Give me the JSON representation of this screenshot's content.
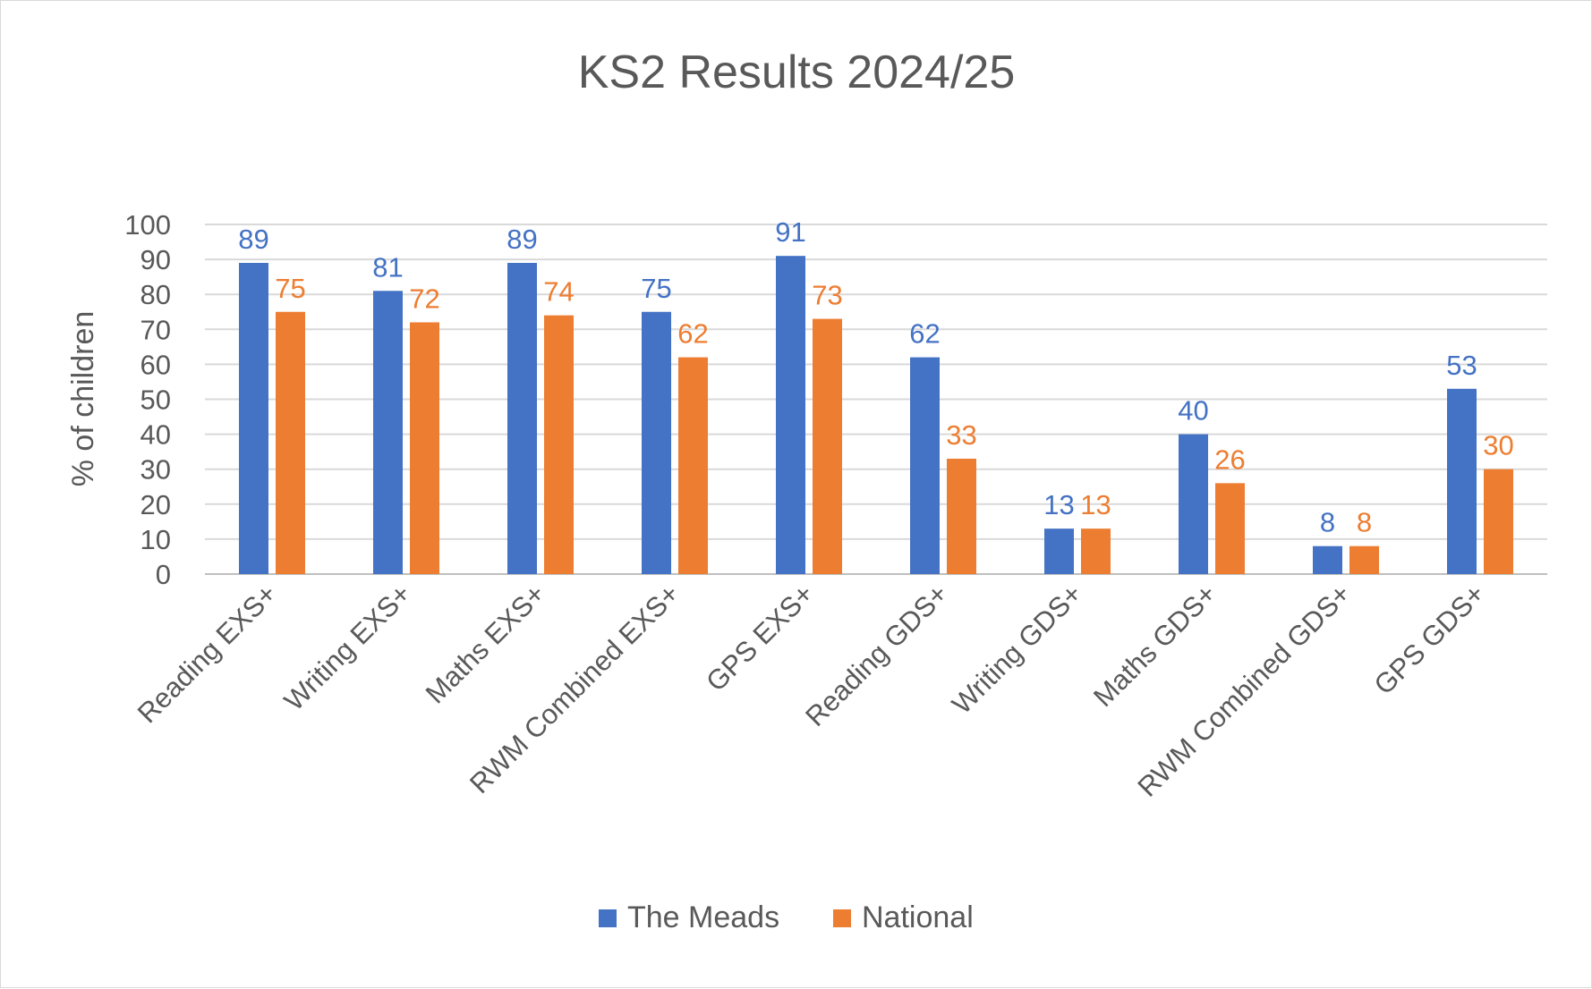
{
  "chart_data": {
    "type": "bar",
    "title": "KS2 Results 2024/25",
    "xlabel": "",
    "ylabel": "% of children",
    "ylim": [
      0,
      100
    ],
    "yticks": [
      0,
      10,
      20,
      30,
      40,
      50,
      60,
      70,
      80,
      90,
      100
    ],
    "grid": true,
    "legend_position": "bottom",
    "categories": [
      "Reading EXS+",
      "Writing EXS+",
      "Maths EXS+",
      "RWM Combined EXS+",
      "GPS EXS+",
      "Reading GDS+",
      "Writing GDS+",
      "Maths GDS+",
      "RWM Combined GDS+",
      "GPS GDS+"
    ],
    "series": [
      {
        "name": "The Meads",
        "color": "#4472c4",
        "values": [
          89,
          81,
          89,
          75,
          91,
          62,
          13,
          40,
          8,
          53
        ]
      },
      {
        "name": "National",
        "color": "#ed7d31",
        "values": [
          75,
          72,
          74,
          62,
          73,
          33,
          13,
          26,
          8,
          30
        ]
      }
    ],
    "colors": {
      "text": "#595959",
      "grid": "#d9d9d9",
      "axis": "#bfbfbf"
    }
  }
}
